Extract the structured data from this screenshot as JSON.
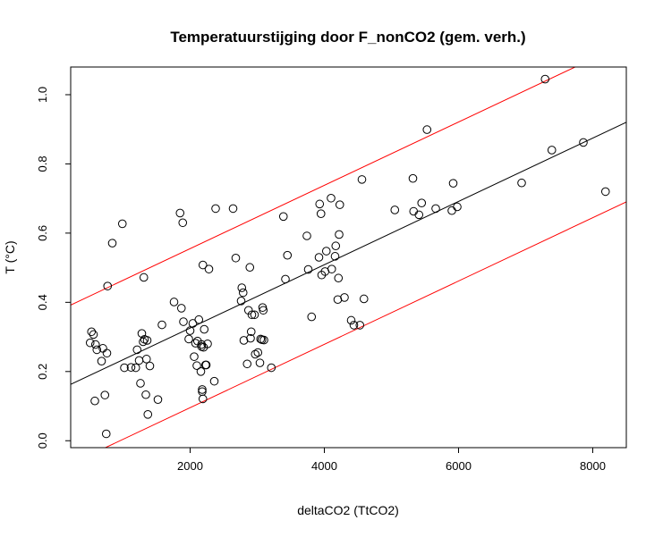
{
  "chart_data": {
    "type": "scatter",
    "title": "Temperatuurstijging door F_nonCO2 (gem. verh.)",
    "xlabel": "deltaCO2 (TtCO2)",
    "ylabel": "T (°C)",
    "xlim": [
      220,
      8500
    ],
    "ylim": [
      -0.02,
      1.08
    ],
    "x_ticks": [
      2000,
      4000,
      6000,
      8000
    ],
    "x_tick_labels": [
      "2000",
      "4000",
      "6000",
      "8000"
    ],
    "y_ticks": [
      0.0,
      0.2,
      0.4,
      0.6,
      0.8,
      1.0
    ],
    "y_tick_labels": [
      "0.0",
      "0.2",
      "0.4",
      "0.6",
      "0.8",
      "1.0"
    ],
    "grid": false,
    "legend": "none",
    "point_style": "open circle",
    "points": [
      [
        510,
        0.283
      ],
      [
        530,
        0.315
      ],
      [
        560,
        0.307
      ],
      [
        580,
        0.115
      ],
      [
        590,
        0.278
      ],
      [
        610,
        0.263
      ],
      [
        680,
        0.23
      ],
      [
        700,
        0.267
      ],
      [
        730,
        0.132
      ],
      [
        750,
        0.02
      ],
      [
        760,
        0.253
      ],
      [
        770,
        0.447
      ],
      [
        840,
        0.571
      ],
      [
        990,
        0.627
      ],
      [
        1020,
        0.211
      ],
      [
        1120,
        0.212
      ],
      [
        1190,
        0.211
      ],
      [
        1210,
        0.263
      ],
      [
        1240,
        0.232
      ],
      [
        1260,
        0.166
      ],
      [
        1280,
        0.31
      ],
      [
        1300,
        0.286
      ],
      [
        1310,
        0.472
      ],
      [
        1320,
        0.293
      ],
      [
        1340,
        0.133
      ],
      [
        1350,
        0.236
      ],
      [
        1360,
        0.29
      ],
      [
        1370,
        0.076
      ],
      [
        1400,
        0.216
      ],
      [
        1520,
        0.119
      ],
      [
        1580,
        0.335
      ],
      [
        1760,
        0.401
      ],
      [
        1850,
        0.658
      ],
      [
        1870,
        0.383
      ],
      [
        1890,
        0.63
      ],
      [
        1900,
        0.344
      ],
      [
        1980,
        0.294
      ],
      [
        2000,
        0.318
      ],
      [
        2040,
        0.339
      ],
      [
        2060,
        0.243
      ],
      [
        2080,
        0.282
      ],
      [
        2100,
        0.217
      ],
      [
        2110,
        0.288
      ],
      [
        2130,
        0.35
      ],
      [
        2160,
        0.2
      ],
      [
        2170,
        0.278
      ],
      [
        2170,
        0.272
      ],
      [
        2180,
        0.148
      ],
      [
        2180,
        0.142
      ],
      [
        2190,
        0.121
      ],
      [
        2190,
        0.508
      ],
      [
        2200,
        0.27
      ],
      [
        2210,
        0.322
      ],
      [
        2230,
        0.219
      ],
      [
        2240,
        0.219
      ],
      [
        2260,
        0.28
      ],
      [
        2280,
        0.496
      ],
      [
        2360,
        0.172
      ],
      [
        2380,
        0.671
      ],
      [
        2640,
        0.671
      ],
      [
        2680,
        0.528
      ],
      [
        2760,
        0.404
      ],
      [
        2770,
        0.442
      ],
      [
        2790,
        0.428
      ],
      [
        2800,
        0.29
      ],
      [
        2850,
        0.222
      ],
      [
        2870,
        0.377
      ],
      [
        2890,
        0.501
      ],
      [
        2900,
        0.296
      ],
      [
        2910,
        0.315
      ],
      [
        2920,
        0.364
      ],
      [
        2960,
        0.364
      ],
      [
        2970,
        0.25
      ],
      [
        3010,
        0.255
      ],
      [
        3040,
        0.225
      ],
      [
        3050,
        0.294
      ],
      [
        3070,
        0.292
      ],
      [
        3080,
        0.385
      ],
      [
        3090,
        0.377
      ],
      [
        3100,
        0.291
      ],
      [
        3210,
        0.211
      ],
      [
        3390,
        0.648
      ],
      [
        3420,
        0.467
      ],
      [
        3450,
        0.536
      ],
      [
        3740,
        0.592
      ],
      [
        3760,
        0.495
      ],
      [
        3810,
        0.358
      ],
      [
        3920,
        0.53
      ],
      [
        3930,
        0.684
      ],
      [
        3950,
        0.656
      ],
      [
        3960,
        0.479
      ],
      [
        4010,
        0.489
      ],
      [
        4030,
        0.548
      ],
      [
        4100,
        0.701
      ],
      [
        4110,
        0.496
      ],
      [
        4160,
        0.533
      ],
      [
        4170,
        0.563
      ],
      [
        4200,
        0.408
      ],
      [
        4210,
        0.47
      ],
      [
        4220,
        0.596
      ],
      [
        4230,
        0.682
      ],
      [
        4300,
        0.414
      ],
      [
        4400,
        0.348
      ],
      [
        4440,
        0.334
      ],
      [
        4530,
        0.334
      ],
      [
        4560,
        0.755
      ],
      [
        4590,
        0.41
      ],
      [
        5050,
        0.667
      ],
      [
        5320,
        0.758
      ],
      [
        5330,
        0.663
      ],
      [
        5410,
        0.653
      ],
      [
        5450,
        0.687
      ],
      [
        5530,
        0.899
      ],
      [
        5660,
        0.671
      ],
      [
        5900,
        0.665
      ],
      [
        5920,
        0.744
      ],
      [
        5980,
        0.676
      ],
      [
        6940,
        0.745
      ],
      [
        7290,
        1.045
      ],
      [
        7390,
        0.84
      ],
      [
        7860,
        0.862
      ],
      [
        8190,
        0.72
      ]
    ],
    "lines": [
      {
        "role": "fit",
        "color": "#000000",
        "intercept": 0.1426,
        "slope": 9.15e-05
      },
      {
        "role": "upper",
        "color": "#ff0000",
        "intercept": 0.372,
        "slope": 9.15e-05
      },
      {
        "role": "lower",
        "color": "#ff0000",
        "intercept": -0.0874,
        "slope": 9.15e-05
      }
    ]
  }
}
